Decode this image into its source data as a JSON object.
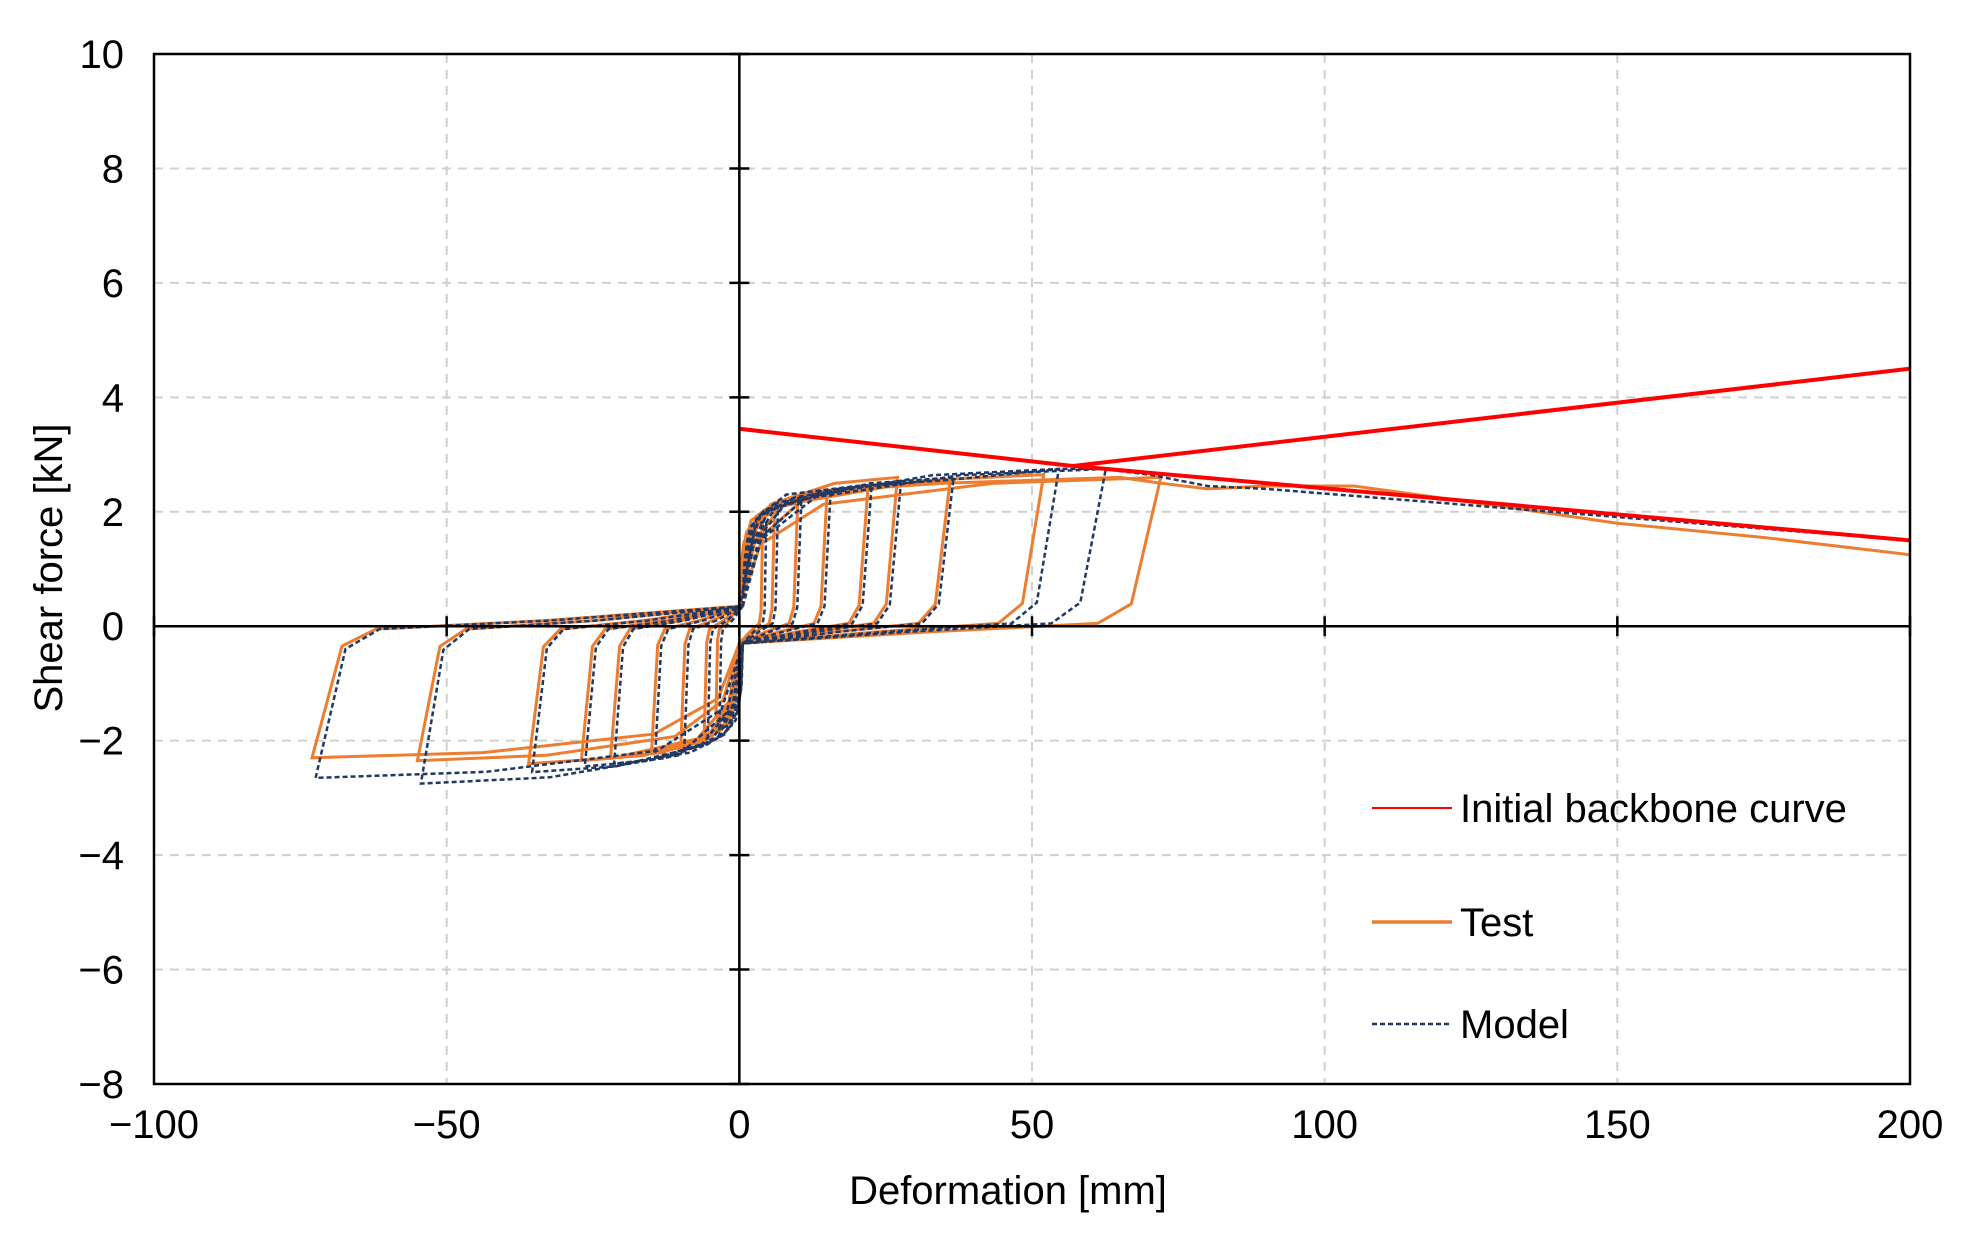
{
  "chart_data": {
    "type": "line",
    "title": "",
    "xlabel": "Deformation [mm]",
    "ylabel": "Shear force [kN]",
    "xlim": [
      -100,
      200
    ],
    "ylim": [
      -8,
      10
    ],
    "xticks": [
      -100,
      -50,
      0,
      50,
      100,
      150,
      200
    ],
    "yticks": [
      -8,
      -6,
      -4,
      -2,
      0,
      2,
      4,
      6,
      8,
      10
    ],
    "xtick_labels": [
      "−100",
      "−50",
      "0",
      "50",
      "100",
      "150",
      "200"
    ],
    "ytick_labels": [
      "−8",
      "−6",
      "−4",
      "−2",
      "0",
      "2",
      "4",
      "6",
      "8",
      "10"
    ],
    "grid": true,
    "legend_position": "bottom-right",
    "series": [
      {
        "name": "Initial backbone curve",
        "color": "#ff0000",
        "style": "solid",
        "segments": [
          {
            "x": [
              0,
              57,
              200
            ],
            "y": [
              3.45,
              2.8,
              1.5
            ]
          },
          {
            "x": [
              57,
              200
            ],
            "y": [
              2.8,
              4.5
            ]
          }
        ]
      },
      {
        "name": "Test",
        "color": "#ed7d31",
        "style": "solid",
        "envelope": {
          "x": [
            0,
            3,
            8,
            20,
            35,
            50,
            65,
            72,
            80,
            90,
            105,
            130,
            150,
            175,
            200
          ],
          "y": [
            0.3,
            1.8,
            2.2,
            2.4,
            2.5,
            2.55,
            2.6,
            2.5,
            2.4,
            2.45,
            2.45,
            2.1,
            1.8,
            1.55,
            1.25
          ]
        },
        "cycle_peaks_positive": [
          [
            4,
            1.8
          ],
          [
            6,
            2.0
          ],
          [
            10,
            2.25
          ],
          [
            15,
            2.35
          ],
          [
            22,
            2.45
          ],
          [
            27,
            2.6
          ],
          [
            36,
            2.55
          ],
          [
            52,
            2.65
          ],
          [
            72,
            2.6
          ]
        ],
        "cycle_peaks_negative": [
          [
            -4,
            -1.6
          ],
          [
            -6,
            -1.9
          ],
          [
            -10,
            -2.1
          ],
          [
            -15,
            -2.2
          ],
          [
            -22,
            -2.3
          ],
          [
            -27,
            -2.35
          ],
          [
            -36,
            -2.4
          ],
          [
            -55,
            -2.35
          ],
          [
            -73,
            -2.3
          ]
        ]
      },
      {
        "name": "Model",
        "color": "#203864",
        "style": "dashed",
        "envelope": {
          "x": [
            0,
            3,
            8,
            20,
            35,
            55,
            62,
            70,
            80,
            90,
            200
          ],
          "y": [
            0.3,
            1.9,
            2.3,
            2.45,
            2.55,
            2.75,
            2.75,
            2.65,
            2.45,
            2.4,
            1.5
          ]
        },
        "cycle_peaks_positive": [
          [
            4,
            1.85
          ],
          [
            6,
            2.1
          ],
          [
            10,
            2.25
          ],
          [
            15,
            2.35
          ],
          [
            22,
            2.45
          ],
          [
            27,
            2.5
          ],
          [
            36,
            2.6
          ],
          [
            54,
            2.75
          ],
          [
            62,
            2.75
          ],
          [
            72,
            2.65
          ]
        ],
        "cycle_peaks_negative": [
          [
            -4,
            -1.8
          ],
          [
            -6,
            -2.0
          ],
          [
            -10,
            -2.15
          ],
          [
            -15,
            -2.3
          ],
          [
            -22,
            -2.4
          ],
          [
            -27,
            -2.45
          ],
          [
            -36,
            -2.55
          ],
          [
            -55,
            -2.75
          ],
          [
            -73,
            -2.65
          ]
        ]
      }
    ]
  }
}
